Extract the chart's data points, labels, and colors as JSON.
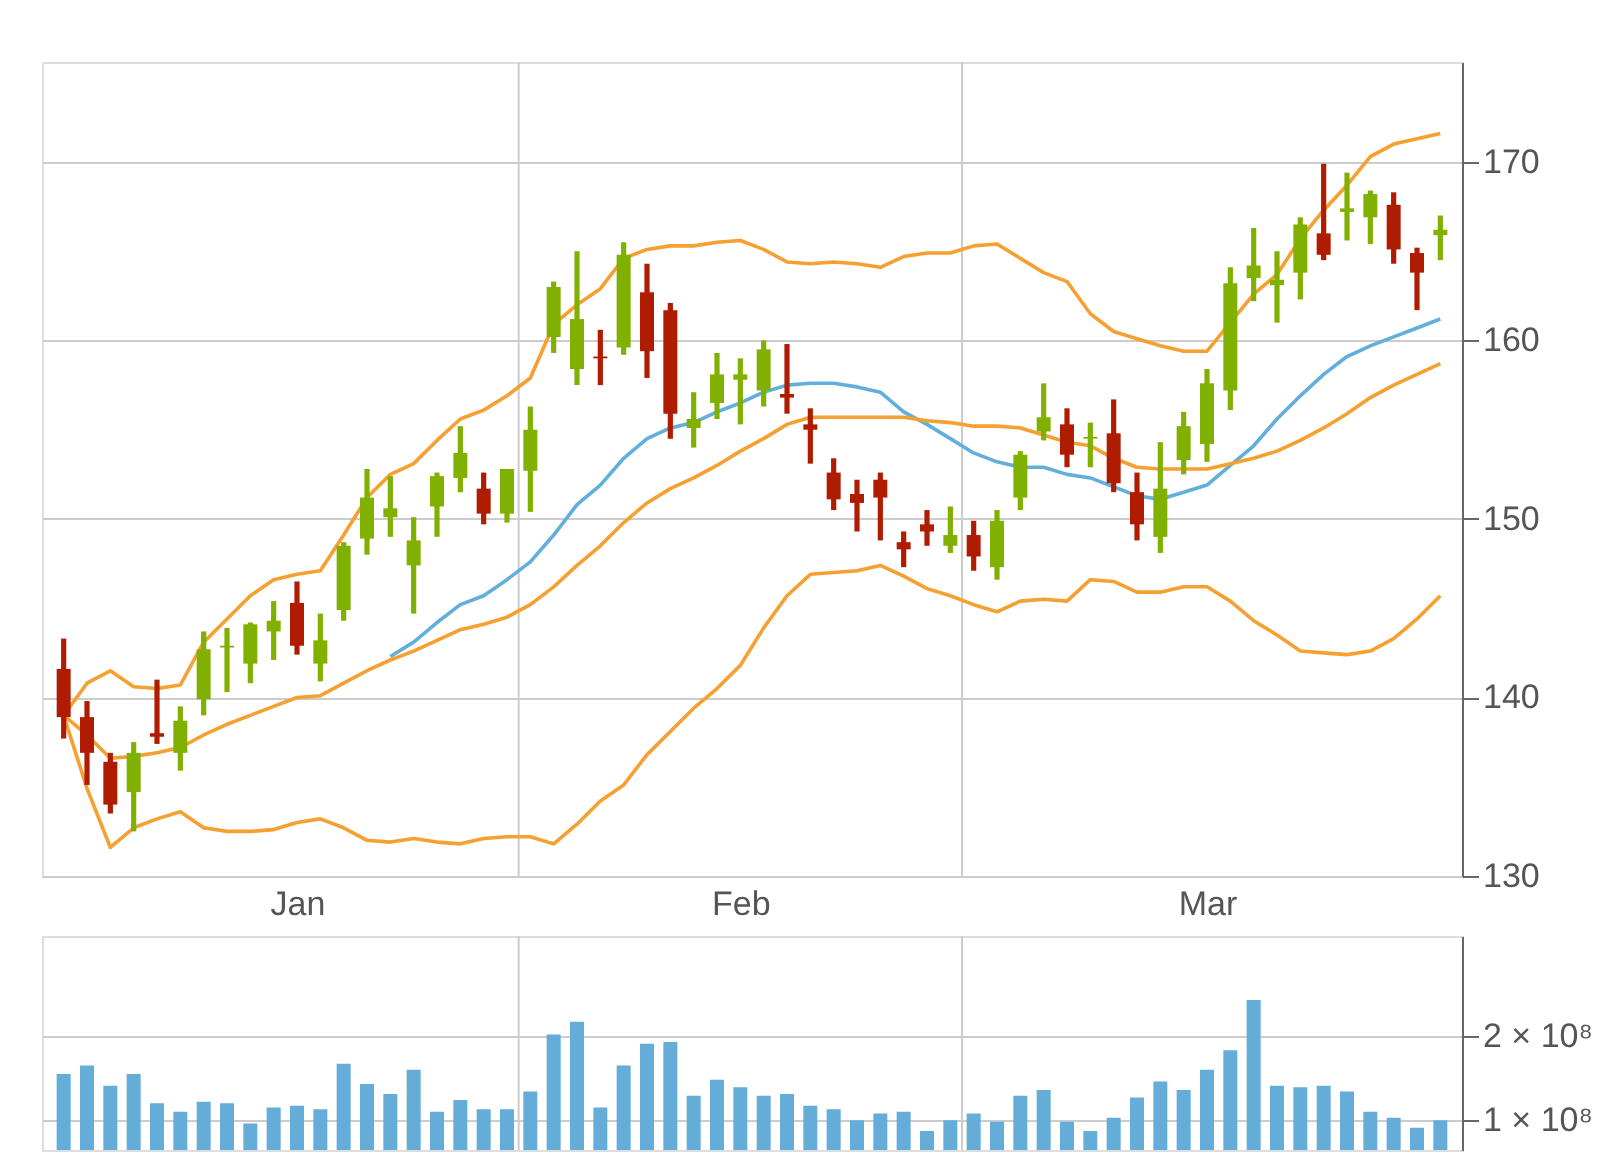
{
  "chart_data": [
    {
      "type": "candlestick",
      "categories": [
        null,
        null,
        null,
        null,
        null,
        null,
        null,
        null,
        null,
        null,
        "Jan",
        null,
        null,
        null,
        null,
        null,
        null,
        null,
        null,
        null,
        null,
        null,
        null,
        null,
        null,
        null,
        null,
        null,
        null,
        "Feb",
        null,
        null,
        null,
        null,
        null,
        null,
        null,
        null,
        null,
        null,
        null,
        null,
        null,
        null,
        null,
        null,
        null,
        null,
        null,
        "Mar",
        null,
        null,
        null,
        null,
        null,
        null,
        null,
        null,
        null,
        null
      ],
      "ohlc": [
        [
          141.6,
          143.3,
          137.7,
          138.9
        ],
        [
          138.9,
          139.8,
          135.1,
          136.9
        ],
        [
          136.4,
          136.9,
          133.5,
          134.0
        ],
        [
          134.7,
          137.5,
          132.5,
          136.9
        ],
        [
          138.0,
          141.0,
          137.4,
          137.8
        ],
        [
          136.9,
          139.5,
          135.9,
          138.7
        ],
        [
          139.9,
          143.7,
          139.0,
          142.7
        ],
        [
          142.8,
          143.9,
          140.3,
          142.9
        ],
        [
          141.9,
          144.2,
          140.8,
          144.1
        ],
        [
          143.7,
          145.4,
          142.1,
          144.3
        ],
        [
          145.3,
          146.5,
          142.4,
          142.9
        ],
        [
          141.9,
          144.7,
          140.9,
          143.2
        ],
        [
          144.9,
          148.7,
          144.3,
          148.5
        ],
        [
          148.9,
          152.8,
          148.0,
          151.2
        ],
        [
          150.1,
          152.4,
          149.0,
          150.6
        ],
        [
          147.4,
          150.1,
          144.7,
          148.8
        ],
        [
          150.7,
          152.6,
          149.0,
          152.4
        ],
        [
          152.3,
          155.2,
          151.5,
          153.7
        ],
        [
          151.7,
          152.6,
          149.7,
          150.3
        ],
        [
          150.3,
          152.8,
          149.8,
          152.8
        ],
        [
          152.7,
          156.3,
          150.4,
          155.0
        ],
        [
          160.2,
          163.3,
          159.3,
          163.0
        ],
        [
          158.4,
          165.0,
          157.5,
          161.2
        ],
        [
          159.1,
          160.6,
          157.5,
          159.0
        ],
        [
          159.6,
          165.5,
          159.2,
          164.8
        ],
        [
          162.7,
          164.3,
          157.9,
          159.4
        ],
        [
          161.7,
          162.1,
          154.5,
          155.9
        ],
        [
          155.1,
          157.1,
          154.0,
          155.6
        ],
        [
          156.5,
          159.3,
          155.6,
          158.1
        ],
        [
          157.8,
          159.0,
          155.3,
          158.1
        ],
        [
          157.2,
          160.0,
          156.3,
          159.5
        ],
        [
          157.0,
          159.8,
          155.9,
          156.8
        ],
        [
          155.3,
          156.2,
          153.1,
          155.0
        ],
        [
          152.6,
          153.4,
          150.5,
          151.1
        ],
        [
          151.4,
          152.2,
          149.3,
          150.9
        ],
        [
          152.2,
          152.6,
          148.8,
          151.2
        ],
        [
          148.7,
          149.3,
          147.3,
          148.3
        ],
        [
          149.7,
          150.5,
          148.5,
          149.3
        ],
        [
          148.5,
          150.7,
          148.1,
          149.1
        ],
        [
          149.1,
          149.9,
          147.1,
          147.9
        ],
        [
          147.3,
          150.5,
          146.6,
          149.9
        ],
        [
          151.2,
          153.8,
          150.5,
          153.6
        ],
        [
          154.9,
          157.6,
          154.4,
          155.7
        ],
        [
          155.3,
          156.2,
          152.9,
          153.6
        ],
        [
          154.5,
          155.4,
          152.9,
          154.6
        ],
        [
          154.8,
          156.7,
          151.5,
          152.0
        ],
        [
          151.5,
          152.6,
          148.8,
          149.7
        ],
        [
          149.0,
          154.3,
          148.1,
          151.7
        ],
        [
          153.3,
          156.0,
          152.5,
          155.2
        ],
        [
          154.2,
          158.4,
          153.2,
          157.6
        ],
        [
          157.2,
          164.1,
          156.1,
          163.2
        ],
        [
          163.5,
          166.3,
          162.2,
          164.2
        ],
        [
          163.1,
          165.0,
          161.0,
          163.4
        ],
        [
          163.8,
          166.9,
          162.3,
          166.5
        ],
        [
          166.0,
          169.9,
          164.5,
          164.8
        ],
        [
          167.2,
          169.4,
          165.6,
          167.4
        ],
        [
          166.9,
          168.4,
          165.4,
          168.2
        ],
        [
          167.6,
          168.3,
          164.3,
          165.1
        ],
        [
          164.9,
          165.2,
          161.7,
          163.8
        ],
        [
          165.9,
          167.0,
          164.5,
          166.2
        ]
      ],
      "colors": [
        "#b01c00",
        "#b01c00",
        "#b01c00",
        "#80b000",
        "#b01c00",
        "#80b000",
        "#80b000",
        "#80b000",
        "#80b000",
        "#80b000",
        "#b01c00",
        "#80b000",
        "#80b000",
        "#80b000",
        "#80b000",
        "#80b000",
        "#80b000",
        "#80b000",
        "#b01c00",
        "#80b000",
        "#80b000",
        "#80b000",
        "#80b000",
        "#b01c00",
        "#80b000",
        "#b01c00",
        "#b01c00",
        "#80b000",
        "#80b000",
        "#80b000",
        "#80b000",
        "#b01c00",
        "#b01c00",
        "#b01c00",
        "#b01c00",
        "#b01c00",
        "#b01c00",
        "#b01c00",
        "#80b000",
        "#b01c00",
        "#80b000",
        "#80b000",
        "#80b000",
        "#b01c00",
        "#80b000",
        "#b01c00",
        "#b01c00",
        "#80b000",
        "#80b000",
        "#80b000",
        "#80b000",
        "#80b000",
        "#80b000",
        "#80b000",
        "#b01c00",
        "#80b000",
        "#80b000",
        "#b01c00",
        "#b01c00",
        "#80b000"
      ],
      "series": [
        {
          "type": "line",
          "color": "#f5a031",
          "values": [
            139.0,
            140.8,
            141.5,
            140.6,
            140.5,
            140.7,
            143.1,
            144.4,
            145.7,
            146.6,
            146.9,
            147.1,
            149.1,
            151.2,
            152.5,
            153.1,
            154.4,
            155.6,
            156.1,
            156.9,
            157.9,
            160.9,
            162.0,
            162.9,
            164.6,
            165.1,
            165.3,
            165.3,
            165.5,
            165.6,
            165.1,
            164.4,
            164.3,
            164.4,
            164.3,
            164.1,
            164.7,
            164.9,
            164.9,
            165.3,
            165.4,
            164.6,
            163.8,
            163.3,
            161.5,
            160.5,
            160.1,
            159.7,
            159.4,
            159.4,
            161.0,
            162.6,
            163.7,
            165.7,
            167.3,
            168.7,
            170.3,
            171.0,
            171.3,
            171.6
          ]
        },
        {
          "type": "line",
          "color": "#f5a031",
          "values": [
            139.0,
            134.9,
            131.6,
            132.7,
            133.2,
            133.6,
            132.7,
            132.5,
            132.5,
            132.6,
            133.0,
            133.2,
            132.7,
            132.0,
            131.9,
            132.1,
            131.9,
            131.8,
            132.1,
            132.2,
            132.2,
            131.8,
            132.9,
            134.2,
            135.1,
            136.8,
            138.1,
            139.4,
            140.5,
            141.8,
            143.9,
            145.7,
            146.9,
            147.0,
            147.1,
            147.4,
            146.8,
            146.1,
            145.7,
            145.2,
            144.8,
            145.4,
            145.5,
            145.4,
            146.6,
            146.5,
            145.9,
            145.9,
            146.2,
            146.2,
            145.4,
            144.3,
            143.5,
            142.6,
            142.5,
            142.4,
            142.6,
            143.3,
            144.4,
            145.7
          ]
        },
        {
          "type": "line",
          "color": "#62afdb",
          "values": [
            null,
            null,
            null,
            null,
            null,
            null,
            null,
            null,
            null,
            null,
            null,
            null,
            null,
            null,
            142.3,
            143.1,
            144.2,
            145.2,
            145.7,
            146.6,
            147.6,
            149.1,
            150.8,
            151.9,
            153.4,
            154.5,
            155.1,
            155.4,
            156.0,
            156.5,
            157.1,
            157.5,
            157.6,
            157.6,
            157.4,
            157.1,
            156.0,
            155.3,
            154.5,
            153.7,
            153.2,
            152.9,
            152.9,
            152.5,
            152.3,
            151.8,
            151.3,
            151.1,
            151.5,
            151.9,
            153.0,
            154.1,
            155.6,
            156.9,
            158.1,
            159.1,
            159.7,
            160.2,
            160.7,
            161.2
          ]
        },
        {
          "type": "line",
          "color": "#f5a031",
          "values": [
            139.0,
            137.9,
            136.6,
            136.7,
            136.9,
            137.2,
            137.9,
            138.5,
            139.0,
            139.5,
            140.0,
            140.1,
            140.8,
            141.5,
            142.1,
            142.6,
            143.2,
            143.8,
            144.1,
            144.5,
            145.2,
            146.2,
            147.4,
            148.5,
            149.8,
            150.9,
            151.7,
            152.3,
            153.0,
            153.8,
            154.5,
            155.3,
            155.7,
            155.7,
            155.7,
            155.7,
            155.7,
            155.5,
            155.4,
            155.2,
            155.2,
            155.1,
            154.7,
            154.3,
            154.1,
            153.4,
            152.9,
            152.8,
            152.8,
            152.8,
            153.1,
            153.4,
            153.8,
            154.4,
            155.1,
            155.9,
            156.8,
            157.5,
            158.1,
            158.7
          ]
        }
      ],
      "ylim": [
        130,
        175.6
      ],
      "yticks": [
        130,
        140,
        150,
        160,
        170
      ],
      "grid": "y"
    },
    {
      "type": "bar",
      "color": "#64add8",
      "categories": [
        null,
        null,
        null,
        null,
        null,
        null,
        null,
        null,
        null,
        null,
        null,
        null,
        null,
        null,
        null,
        null,
        null,
        null,
        null,
        null,
        null,
        null,
        null,
        null,
        null,
        null,
        null,
        null,
        null,
        null,
        null,
        null,
        null,
        null,
        null,
        null,
        null,
        null,
        null,
        null,
        null,
        null,
        null,
        null,
        null,
        null,
        null,
        null,
        null,
        null,
        null,
        null,
        null,
        null,
        null,
        null,
        null,
        null,
        null,
        null
      ],
      "values": [
        155000000,
        165000000,
        141000000,
        155000000,
        120000000,
        110000000,
        122000000,
        120000000,
        96000000,
        115000000,
        117000000,
        113000000,
        167000000,
        143000000,
        131000000,
        160000000,
        110000000,
        124000000,
        113000000,
        113000000,
        134000000,
        202000000,
        217000000,
        115000000,
        165000000,
        191000000,
        193000000,
        129000000,
        148000000,
        139000000,
        129000000,
        131000000,
        117000000,
        113000000,
        100000000,
        108000000,
        110000000,
        87000000,
        100000000,
        108000000,
        98000000,
        129000000,
        136000000,
        98000000,
        87000000,
        103000000,
        127000000,
        146000000,
        136000000,
        160000000,
        183000000,
        243000000,
        141000000,
        139000000,
        141000000,
        134000000,
        110000000,
        103000000,
        91000000,
        100000000
      ],
      "ylim": [
        64500000,
        319000000
      ],
      "yticks": [
        {
          "value": 100000000,
          "label": "1 × 10⁸"
        },
        {
          "value": 200000000,
          "label": "2 × 10⁸"
        }
      ],
      "grid": "y",
      "tick_labels": "y"
    }
  ]
}
